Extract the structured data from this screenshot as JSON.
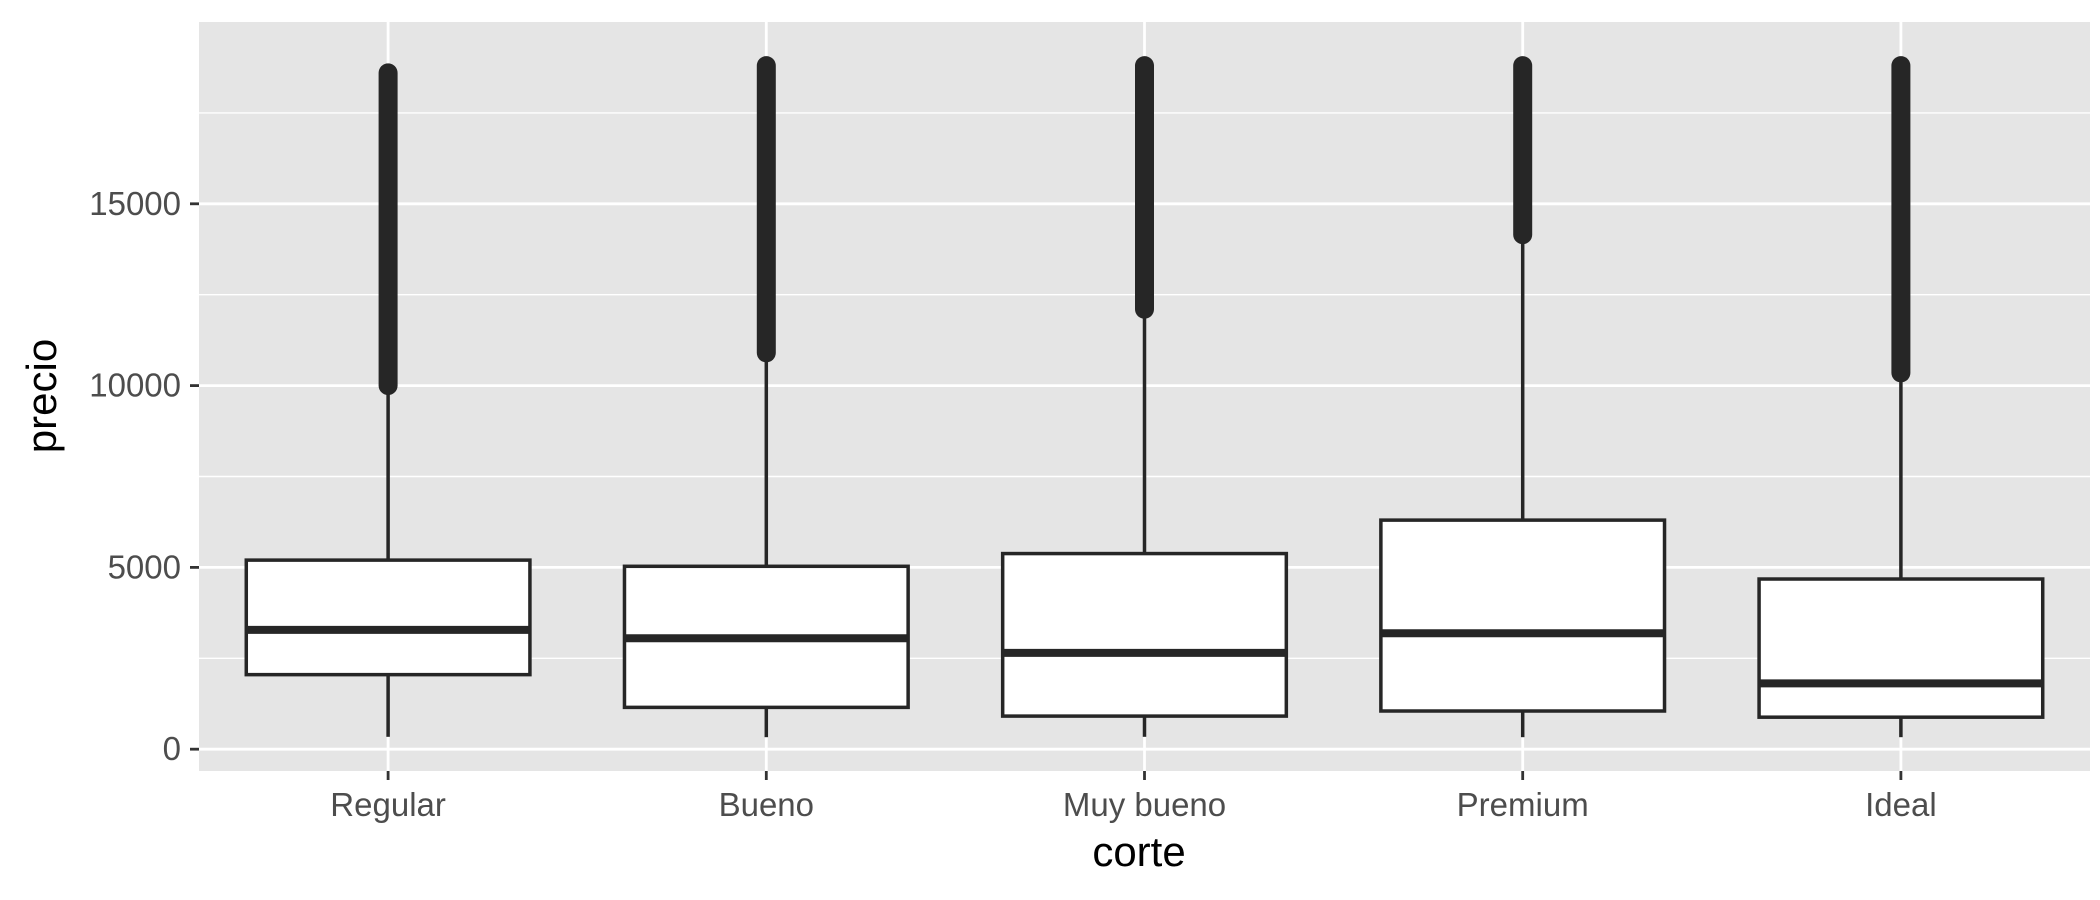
{
  "chart_data": {
    "type": "boxplot",
    "xlabel": "corte",
    "ylabel": "precio",
    "ylim": [
      -600,
      20000
    ],
    "yticks": [
      0,
      5000,
      10000,
      15000
    ],
    "grid": true,
    "legend": "none",
    "colors": {
      "panel": "#e5e5e5",
      "grid": "#ffffff",
      "box_fill": "#ffffff",
      "stroke": "#262626",
      "tick_text": "#4d4d4d",
      "title_text": "#000000"
    },
    "categories": [
      "Regular",
      "Bueno",
      "Muy bueno",
      "Premium",
      "Ideal"
    ],
    "boxes": [
      {
        "category": "Regular",
        "min": 340,
        "q1": 2050,
        "median": 3280,
        "q3": 5200,
        "whisker_high": 9950,
        "outlier_min": 10000,
        "outlier_max": 18600
      },
      {
        "category": "Bueno",
        "min": 330,
        "q1": 1150,
        "median": 3050,
        "q3": 5030,
        "whisker_high": 10800,
        "outlier_min": 10900,
        "outlier_max": 18800
      },
      {
        "category": "Muy bueno",
        "min": 340,
        "q1": 910,
        "median": 2650,
        "q3": 5380,
        "whisker_high": 12000,
        "outlier_min": 12100,
        "outlier_max": 18800
      },
      {
        "category": "Premium",
        "min": 330,
        "q1": 1050,
        "median": 3190,
        "q3": 6300,
        "whisker_high": 14000,
        "outlier_min": 14150,
        "outlier_max": 18800
      },
      {
        "category": "Ideal",
        "min": 330,
        "q1": 880,
        "median": 1810,
        "q3": 4680,
        "whisker_high": 10300,
        "outlier_min": 10350,
        "outlier_max": 18800
      }
    ]
  }
}
